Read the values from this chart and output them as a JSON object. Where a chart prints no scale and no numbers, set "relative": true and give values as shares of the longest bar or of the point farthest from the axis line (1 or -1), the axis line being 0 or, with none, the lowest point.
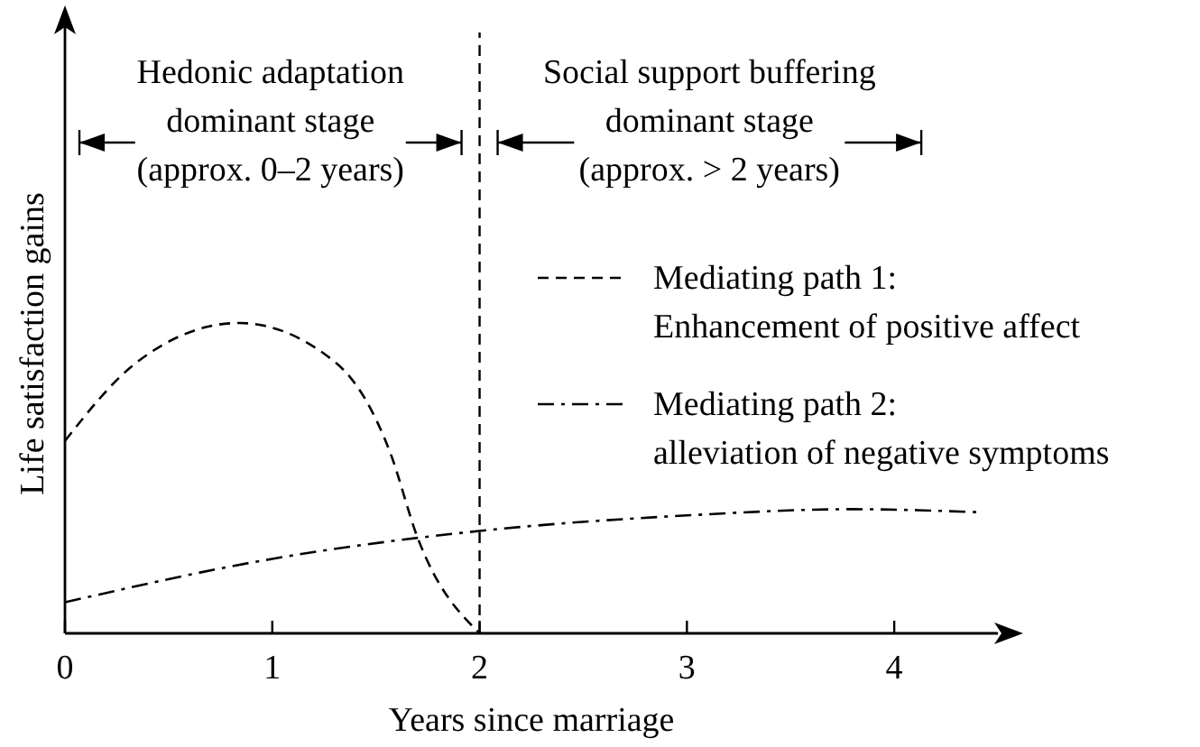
{
  "chart_data": {
    "type": "line",
    "relative": true,
    "xlabel": "Years since marriage",
    "ylabel": "Life satisfaction gains",
    "xlim": [
      0,
      4.5
    ],
    "xticks": [
      0,
      1,
      2,
      3,
      4
    ],
    "legend": "right",
    "tick_labels": "x",
    "series": [
      {
        "name": "Mediating path 1:\nEnhancement of positive affect",
        "color": "#000000",
        "line_style": "dashed",
        "x": [
          0,
          0.34,
          0.84,
          1.31,
          1.57,
          1.7,
          2
        ],
        "values": [
          0.62,
          0.87,
          1,
          0.87,
          0.58,
          0.31,
          0
        ]
      },
      {
        "name": "Mediating path 2:\nalleviation of negative symptoms",
        "color": "#000000",
        "line_style": "dashdot",
        "x": [
          0,
          1,
          2,
          3,
          3.8,
          4.42
        ],
        "values": [
          0.1,
          0.24,
          0.33,
          0.38,
          0.4,
          0.39
        ]
      }
    ],
    "ref_lines": [
      {
        "axis": "x",
        "value": 2,
        "color": "#000000",
        "line_style": "dashed"
      }
    ],
    "annotations": [
      "Hedonic adaptation\ndominant stage\n(approx. 0–2 years)",
      "Social support buffering\ndominant stage\n(approx. > 2 years)"
    ]
  }
}
